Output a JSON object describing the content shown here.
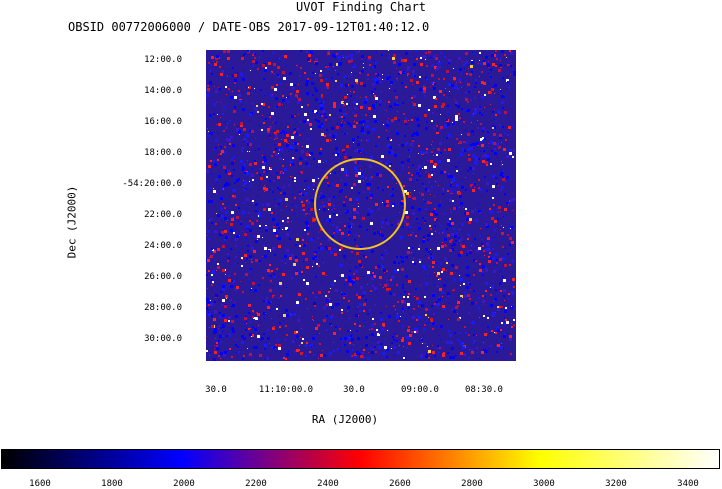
{
  "header": {
    "title": "UVOT Finding Chart",
    "subtitle": "OBSID 00772006000 / DATE-OBS 2017-09-12T01:40:12.0"
  },
  "axes": {
    "ylabel": "Dec (J2000)",
    "xlabel": "RA (J2000)",
    "y_ticks": [
      "12:00.0",
      "14:00.0",
      "16:00.0",
      "18:00.0",
      "-54:20:00.0",
      "22:00.0",
      "24:00.0",
      "26:00.0",
      "28:00.0",
      "30:00.0"
    ],
    "x_ticks": [
      "30.0",
      "11:10:00.0",
      "30.0",
      "09:00.0",
      "08:30.0"
    ]
  },
  "colorbar": {
    "ticks": [
      "1600",
      "1800",
      "2000",
      "2200",
      "2400",
      "2600",
      "2800",
      "3000",
      "3200",
      "3400"
    ],
    "colormap": [
      "#000000",
      "#0000ff",
      "#ff0000",
      "#ffff00",
      "#ffffff"
    ]
  },
  "colors": {
    "circle": "#f4c21a",
    "background": "#2a1a9a"
  }
}
